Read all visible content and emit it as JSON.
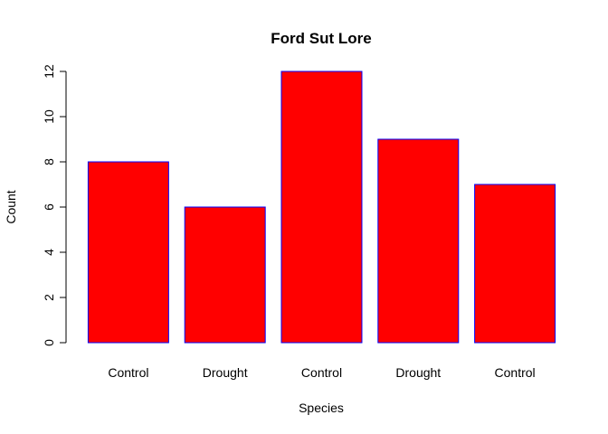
{
  "chart_data": {
    "type": "bar",
    "title": "Ford Sut Lore",
    "xlabel": "Species",
    "ylabel": "Count",
    "categories": [
      "Control",
      "Drought",
      "Control",
      "Drought",
      "Control"
    ],
    "values": [
      8,
      6,
      12,
      9,
      7
    ],
    "ylim": [
      0,
      12
    ],
    "yticks": [
      0,
      2,
      4,
      6,
      8,
      10,
      12
    ],
    "grid": false,
    "legend": "none",
    "bar_fill": "#ff0000",
    "bar_stroke": "#0000ff"
  }
}
